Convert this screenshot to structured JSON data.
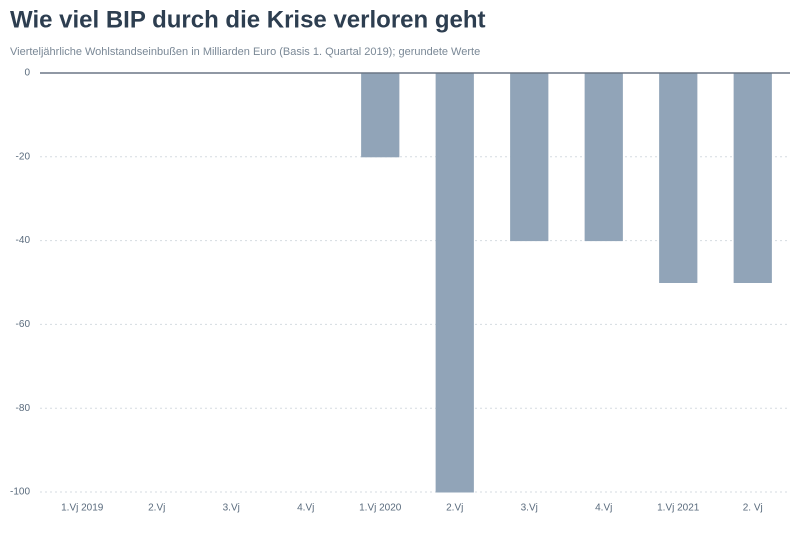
{
  "chart_data": {
    "type": "bar",
    "title": "Wie viel BIP durch die Krise verloren geht",
    "subtitle": "Vierteljährliche Wohlstandseinbußen in Milliarden Euro (Basis 1. Quartal 2019); gerundete Werte",
    "categories": [
      "1.Vj 2019",
      "2.Vj",
      "3.Vj",
      "4.Vj",
      "1.Vj 2020",
      "2.Vj",
      "3.Vj",
      "4.Vj",
      "1.Vj 2021",
      "2. Vj"
    ],
    "values": [
      0,
      0,
      0,
      0,
      -20,
      -100,
      -40,
      -40,
      -50,
      -50
    ],
    "color": "#91a4b8",
    "ylim": [
      -100,
      0
    ],
    "yticks": [
      0,
      -20,
      -40,
      -60,
      -80,
      -100
    ],
    "grid": true
  }
}
